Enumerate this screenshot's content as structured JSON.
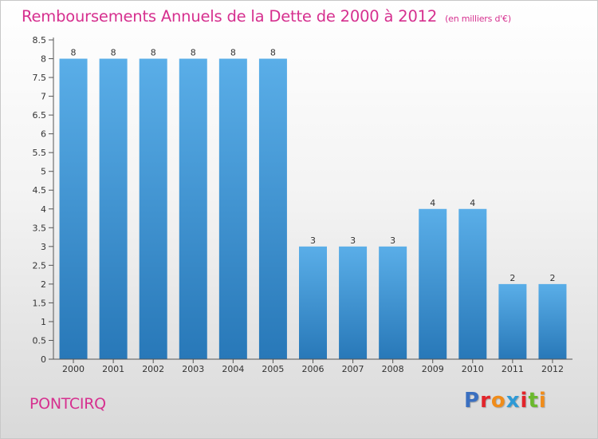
{
  "title": "Remboursements Annuels de la Dette de 2000 à 2012",
  "unit_note": "(en milliers d'€)",
  "commune": "PONTCIRQ",
  "logo": {
    "text": "Proxiti",
    "letter_colors": [
      "#3a6fc0",
      "#e2242b",
      "#f08c1a",
      "#2e9ad6",
      "#e2242b",
      "#6ab92d",
      "#f08c1a"
    ]
  },
  "colors": {
    "title": "#d6308f",
    "bar_top": "#5aaee8",
    "bar_bottom": "#2878b8",
    "axis": "#555555"
  },
  "chart_data": {
    "type": "bar",
    "title": "Remboursements Annuels de la Dette de 2000 à 2012",
    "categories": [
      "2000",
      "2001",
      "2002",
      "2003",
      "2004",
      "2005",
      "2006",
      "2007",
      "2008",
      "2009",
      "2010",
      "2011",
      "2012"
    ],
    "values": [
      8,
      8,
      8,
      8,
      8,
      8,
      3,
      3,
      3,
      4,
      4,
      2,
      2
    ],
    "value_labels": [
      "8",
      "8",
      "8",
      "8",
      "8",
      "8",
      "3",
      "3",
      "3",
      "4",
      "4",
      "2",
      "2"
    ],
    "xlabel": "",
    "ylabel": "",
    "ylim": [
      0,
      8.5
    ],
    "y_ticks": [
      "0",
      "0.5",
      "1",
      "1.5",
      "2",
      "2.5",
      "3",
      "3.5",
      "4",
      "4.5",
      "5",
      "5.5",
      "6",
      "6.5",
      "7",
      "7.5",
      "8",
      "8.5"
    ],
    "grid": false,
    "legend": "none"
  }
}
